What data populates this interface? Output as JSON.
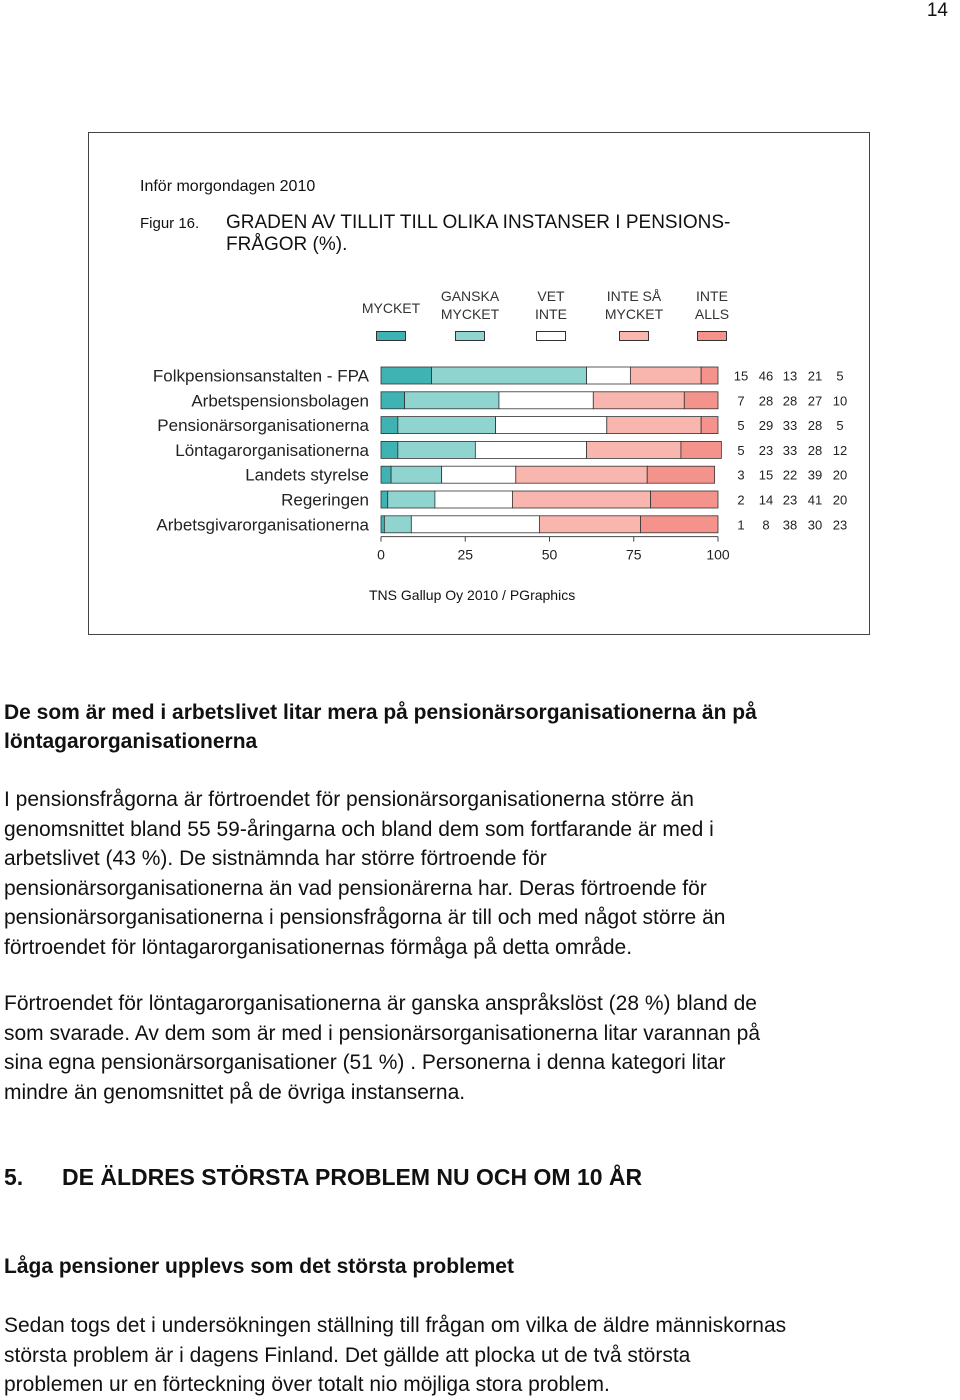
{
  "page_number": "14",
  "figure": {
    "header": "Inför morgondagen 2010",
    "caption_number": "Figur 16.",
    "caption_title_line1": "GRADEN AV TILLIT TILL OLIKA INSTANSER I PENSIONS-",
    "caption_title_line2": "FRÅGOR (%).",
    "source": "TNS Gallup Oy 2010 / PGraphics"
  },
  "legend": [
    {
      "line1": "MYCKET",
      "line2": "",
      "color": "#3fb3b3"
    },
    {
      "line1": "GANSKA",
      "line2": "MYCKET",
      "color": "#8fd4cf"
    },
    {
      "line1": "VET",
      "line2": "INTE",
      "color": "#ffffff"
    },
    {
      "line1": "INTE SÅ",
      "line2": "MYCKET",
      "color": "#f8b6ae"
    },
    {
      "line1": "INTE",
      "line2": "ALLS",
      "color": "#f4938c"
    }
  ],
  "chart_data": {
    "type": "bar",
    "orientation": "horizontal-stacked",
    "categories": [
      "Folkpensionsanstalten - FPA",
      "Arbetspensionsbolagen",
      "Pensionärsorganisationerna",
      "Löntagarorganisationerna",
      "Landets styrelse",
      "Regeringen",
      "Arbetsgivarorganisationerna"
    ],
    "series": [
      {
        "name": "MYCKET",
        "values": [
          15,
          7,
          5,
          5,
          3,
          2,
          1
        ]
      },
      {
        "name": "GANSKA MYCKET",
        "values": [
          46,
          28,
          29,
          23,
          15,
          14,
          8
        ]
      },
      {
        "name": "VET INTE",
        "values": [
          13,
          28,
          33,
          33,
          22,
          23,
          38
        ]
      },
      {
        "name": "INTE SÅ MYCKET",
        "values": [
          21,
          27,
          28,
          28,
          39,
          41,
          30
        ]
      },
      {
        "name": "INTE ALLS",
        "values": [
          5,
          10,
          5,
          12,
          20,
          20,
          23
        ]
      }
    ],
    "xlim": [
      0,
      100
    ],
    "xticks": [
      "0",
      "25",
      "50",
      "75",
      "100"
    ],
    "legend_position": "top"
  },
  "text": {
    "heading1_line1": "De som är med i arbetslivet litar mera på pensionärsorganisationerna än på",
    "heading1_line2": "löntagarorganisationerna",
    "para1": [
      "I pensionsfrågorna är förtroendet för pensionärsorganisationerna större än",
      "genomsnittet bland 55 59-åringarna och bland dem som fortfarande är med i",
      "arbetslivet (43 %). De sistnämnda har större förtroende för",
      "pensionärsorganisationerna än vad pensionärerna har. Deras förtroende för",
      "pensionärsorganisationerna i pensionsfrågorna är till och med något större än",
      "förtroendet för löntagarorganisationernas förmåga på detta område."
    ],
    "para2": [
      "Förtroendet för löntagarorganisationerna är ganska anspråkslöst (28 %) bland de",
      "som svarade. Av dem som är med i pensionärsorganisationerna litar varannan på",
      "sina egna pensionärsorganisationer (51 %) . Personerna i denna kategori litar",
      "mindre än genomsnittet på de övriga instanserna."
    ],
    "section_number": "5.",
    "section_title": "DE ÄLDRES STÖRSTA PROBLEM NU OCH OM 10 ÅR",
    "heading2": "Låga pensioner upplevs som det största problemet",
    "para3": [
      "Sedan togs det i undersökningen ställning till frågan om vilka de äldre människornas",
      "största problem är i dagens Finland. Det gällde att plocka ut de två största",
      "problemen ur en förteckning över totalt nio möjliga stora problem."
    ]
  }
}
